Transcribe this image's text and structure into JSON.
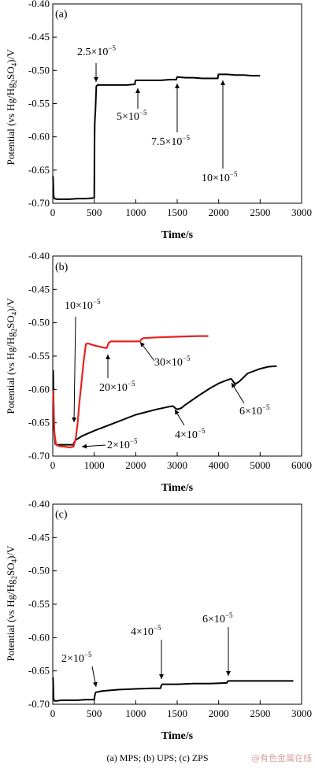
{
  "caption": "(a) MPS; (b) UPS; (c) ZPS",
  "watermark": "@有色金属在线",
  "chart_data": [
    {
      "type": "line",
      "panel_label": "(a)",
      "xlabel": "Time/s",
      "ylabel": "Potential (vs Hg/Hg2SO4)/V",
      "xlim": [
        0,
        3000
      ],
      "ylim": [
        -0.7,
        -0.4
      ],
      "xticks": [
        0,
        500,
        1000,
        1500,
        2000,
        2500,
        3000
      ],
      "yticks": [
        -0.4,
        -0.45,
        -0.5,
        -0.55,
        -0.6,
        -0.65,
        -0.7
      ],
      "series": [
        {
          "color": "#000000",
          "x": [
            0,
            3,
            10,
            20,
            50,
            100,
            200,
            300,
            400,
            500,
            503,
            506,
            510,
            515,
            525,
            540,
            600,
            700,
            800,
            900,
            990,
            995,
            1000,
            1100,
            1200,
            1300,
            1400,
            1490,
            1495,
            1500,
            1600,
            1700,
            1800,
            1900,
            1990,
            1995,
            2000,
            2100,
            2200,
            2300,
            2400,
            2500
          ],
          "y": [
            -0.66,
            -0.66,
            -0.689,
            -0.693,
            -0.694,
            -0.694,
            -0.694,
            -0.693,
            -0.693,
            -0.692,
            -0.61,
            -0.58,
            -0.57,
            -0.56,
            -0.524,
            -0.522,
            -0.522,
            -0.522,
            -0.522,
            -0.522,
            -0.521,
            -0.516,
            -0.515,
            -0.515,
            -0.515,
            -0.515,
            -0.514,
            -0.514,
            -0.511,
            -0.51,
            -0.511,
            -0.511,
            -0.512,
            -0.512,
            -0.512,
            -0.507,
            -0.506,
            -0.506,
            -0.507,
            -0.507,
            -0.508,
            -0.508
          ]
        }
      ],
      "annotations": [
        {
          "text": "2.5×10⁻⁵",
          "x": 520,
          "y": -0.524
        },
        {
          "text": "5×10⁻⁵",
          "x": 1000,
          "y": -0.516
        },
        {
          "text": "7.5×10⁻⁵",
          "x": 1500,
          "y": -0.511
        },
        {
          "text": "10×10⁻⁵",
          "x": 2000,
          "y": -0.507
        }
      ]
    },
    {
      "type": "line",
      "panel_label": "(b)",
      "xlabel": "Time/s",
      "ylabel": "Potential (vs Hg/Hg2SO4)/V",
      "xlim": [
        0,
        6000
      ],
      "ylim": [
        -0.7,
        -0.4
      ],
      "xticks": [
        0,
        1000,
        2000,
        3000,
        4000,
        5000,
        6000
      ],
      "yticks": [
        -0.4,
        -0.45,
        -0.5,
        -0.55,
        -0.6,
        -0.65,
        -0.7
      ],
      "series": [
        {
          "color": "#000000",
          "x": [
            0,
            10,
            30,
            60,
            100,
            200,
            300,
            400,
            500,
            510,
            550,
            700,
            1000,
            1500,
            2000,
            2500,
            2800,
            2900,
            2950,
            3000,
            3100,
            3200,
            3500,
            3800,
            4000,
            4200,
            4300,
            4400,
            4500,
            4700,
            5000,
            5200,
            5400
          ],
          "y": [
            -0.572,
            -0.572,
            -0.66,
            -0.682,
            -0.683,
            -0.683,
            -0.683,
            -0.683,
            -0.683,
            -0.68,
            -0.676,
            -0.67,
            -0.662,
            -0.65,
            -0.638,
            -0.63,
            -0.626,
            -0.625,
            -0.628,
            -0.63,
            -0.628,
            -0.623,
            -0.61,
            -0.598,
            -0.591,
            -0.586,
            -0.584,
            -0.592,
            -0.588,
            -0.576,
            -0.569,
            -0.566,
            -0.565
          ]
        },
        {
          "color": "#e8231e",
          "x": [
            0,
            10,
            40,
            80,
            150,
            300,
            400,
            500,
            550,
            600,
            650,
            700,
            750,
            800,
            850,
            1000,
            1200,
            1300,
            1350,
            1400,
            1500,
            1800,
            2100,
            2150,
            2200,
            2500,
            3000,
            3500,
            3750
          ],
          "y": [
            -0.602,
            -0.602,
            -0.665,
            -0.683,
            -0.685,
            -0.686,
            -0.687,
            -0.686,
            -0.675,
            -0.65,
            -0.615,
            -0.585,
            -0.555,
            -0.532,
            -0.531,
            -0.534,
            -0.537,
            -0.538,
            -0.53,
            -0.528,
            -0.528,
            -0.528,
            -0.528,
            -0.524,
            -0.523,
            -0.522,
            -0.521,
            -0.52,
            -0.52
          ]
        }
      ],
      "annotations": [
        {
          "text": "10×10⁻⁵",
          "x": 500,
          "y": -0.683
        },
        {
          "text": "20×10⁻⁵",
          "x": 1350,
          "y": -0.538
        },
        {
          "text": "30×10⁻⁵",
          "x": 2150,
          "y": -0.527
        },
        {
          "text": "2×10⁻⁵",
          "x": 500,
          "y": -0.686
        },
        {
          "text": "4×10⁻⁵",
          "x": 2950,
          "y": -0.63
        },
        {
          "text": "6×10⁻⁵",
          "x": 4400,
          "y": -0.592
        }
      ]
    },
    {
      "type": "line",
      "panel_label": "(c)",
      "xlabel": "Time/s",
      "ylabel": "Potential (vs Hg/Hg2SO4)/V",
      "xlim": [
        0,
        3000
      ],
      "ylim": [
        -0.7,
        -0.4
      ],
      "xticks": [
        0,
        500,
        1000,
        1500,
        2000,
        2500,
        3000
      ],
      "yticks": [
        -0.4,
        -0.45,
        -0.5,
        -0.55,
        -0.6,
        -0.65,
        -0.7
      ],
      "series": [
        {
          "color": "#000000",
          "x": [
            0,
            3,
            10,
            20,
            50,
            100,
            200,
            300,
            400,
            500,
            505,
            515,
            520,
            600,
            800,
            1000,
            1200,
            1300,
            1305,
            1315,
            1320,
            1500,
            1700,
            1900,
            2100,
            2105,
            2115,
            2120,
            2300,
            2500,
            2700,
            2900
          ],
          "y": [
            -0.66,
            -0.66,
            -0.692,
            -0.695,
            -0.695,
            -0.694,
            -0.694,
            -0.694,
            -0.693,
            -0.693,
            -0.688,
            -0.683,
            -0.682,
            -0.68,
            -0.678,
            -0.677,
            -0.676,
            -0.676,
            -0.673,
            -0.671,
            -0.67,
            -0.67,
            -0.669,
            -0.669,
            -0.668,
            -0.666,
            -0.665,
            -0.665,
            -0.665,
            -0.665,
            -0.665,
            -0.665
          ]
        }
      ],
      "annotations": [
        {
          "text": "2×10⁻⁵",
          "x": 520,
          "y": -0.684
        },
        {
          "text": "4×10⁻⁵",
          "x": 1310,
          "y": -0.673
        },
        {
          "text": "6×10⁻⁵",
          "x": 2110,
          "y": -0.666
        }
      ]
    }
  ]
}
